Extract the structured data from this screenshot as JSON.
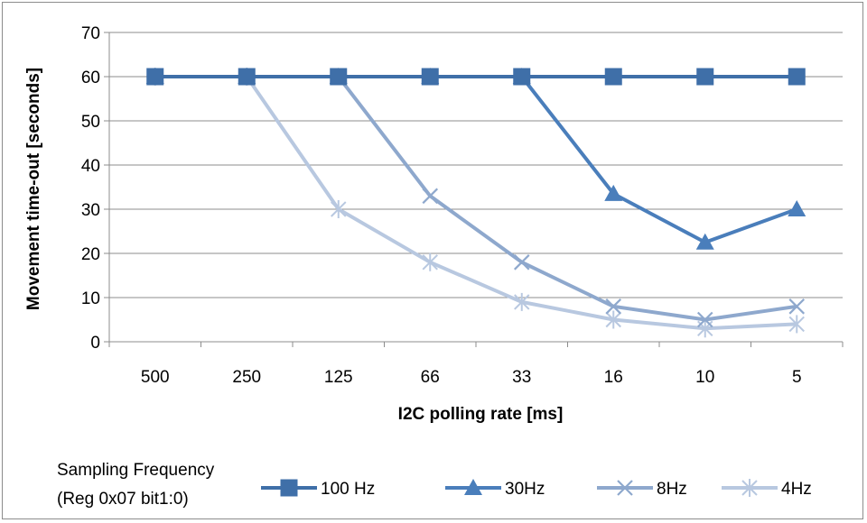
{
  "chart_data": {
    "type": "line",
    "categories": [
      "500",
      "250",
      "125",
      "66",
      "33",
      "16",
      "10",
      "5"
    ],
    "series": [
      {
        "name": "100 Hz",
        "marker": "square",
        "color": "#3f6fa8",
        "values": [
          60,
          60,
          60,
          60,
          60,
          60,
          60,
          60
        ]
      },
      {
        "name": "30Hz",
        "marker": "triangle",
        "color": "#4a7ebb",
        "values": [
          60,
          60,
          60,
          60,
          60,
          33.5,
          22.5,
          30
        ]
      },
      {
        "name": "8Hz",
        "marker": "x",
        "color": "#8ea8cd",
        "values": [
          60,
          60,
          60,
          33,
          18,
          8,
          5,
          8
        ]
      },
      {
        "name": "4Hz",
        "marker": "star",
        "color": "#b8c8e0",
        "values": [
          60,
          60,
          30,
          18,
          9,
          5,
          3,
          4
        ]
      }
    ],
    "ylim": [
      0,
      70
    ],
    "yticks": [
      0,
      10,
      20,
      30,
      40,
      50,
      60,
      70
    ],
    "xlabel": "I2C polling rate [ms]",
    "ylabel": "Movement time-out [seconds]",
    "grid": true,
    "legend": {
      "placement": "bottom",
      "title_lines": [
        "Sampling Frequency",
        "(Reg 0x07 bit1:0)"
      ]
    }
  }
}
